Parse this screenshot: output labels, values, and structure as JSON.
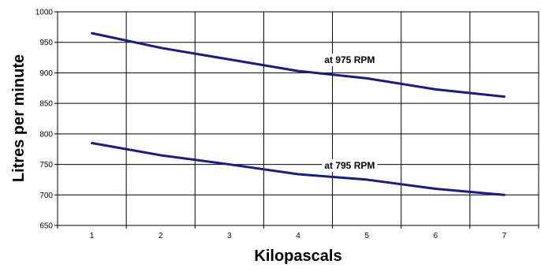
{
  "chart_data": {
    "type": "line",
    "title": "",
    "xlabel": "Kilopascals",
    "ylabel": "Litres per minute",
    "x": [
      1,
      2,
      3,
      4,
      5,
      6,
      7
    ],
    "xlim": [
      0.5,
      7.5
    ],
    "ylim": [
      650,
      1000
    ],
    "yticks": [
      650,
      700,
      750,
      800,
      850,
      900,
      950,
      1000
    ],
    "xtick_labels": [
      "1",
      "2",
      "3",
      "4",
      "5",
      "6",
      "7"
    ],
    "grid": true,
    "line_color": "#1a1a8c",
    "series": [
      {
        "name": "at 975 RPM",
        "values": [
          965,
          941,
          922,
          903,
          891,
          873,
          861
        ]
      },
      {
        "name": "at 795 RPM",
        "values": [
          785,
          765,
          750,
          734,
          725,
          710,
          700
        ]
      }
    ]
  }
}
